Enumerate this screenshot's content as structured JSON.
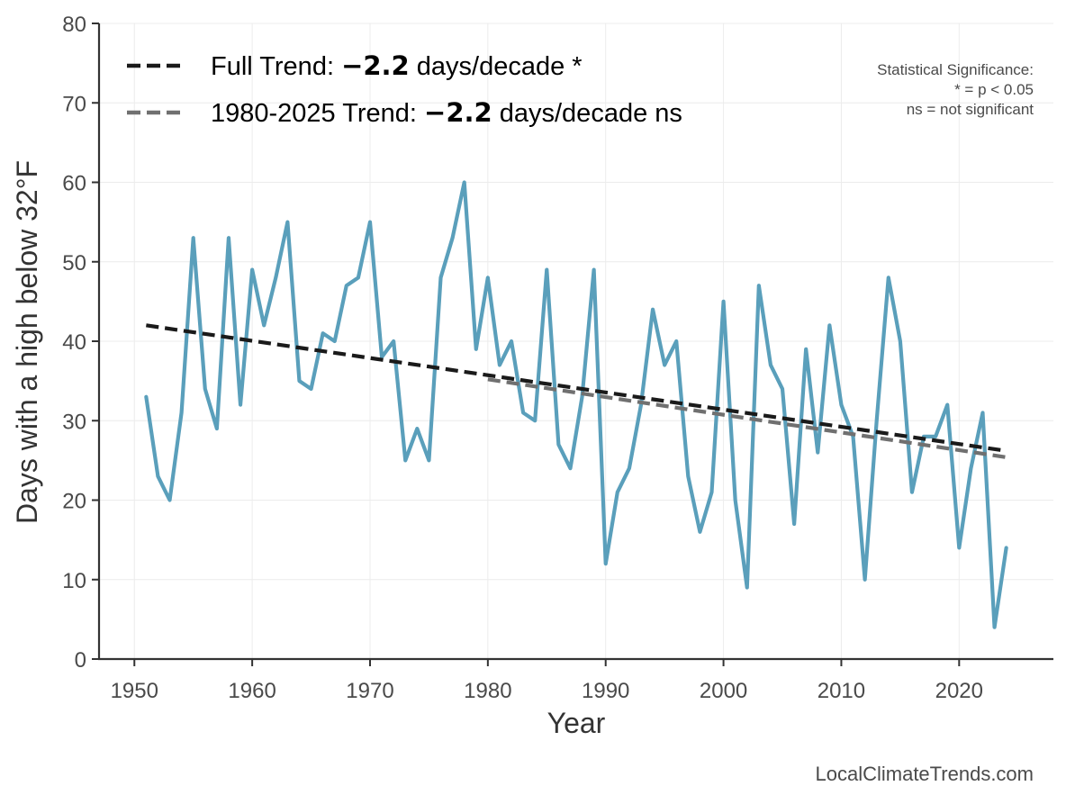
{
  "chart_data": {
    "type": "line",
    "title": "",
    "xlabel": "Year",
    "ylabel": "Days with a high below 32°F",
    "xlim": [
      1947,
      2028
    ],
    "ylim": [
      0,
      80
    ],
    "x_ticks": [
      1950,
      1960,
      1970,
      1980,
      1990,
      2000,
      2010,
      2020
    ],
    "y_ticks": [
      0,
      10,
      20,
      30,
      40,
      50,
      60,
      70,
      80
    ],
    "grid": true,
    "legend_position": "top-left",
    "colors": {
      "observed": "#5a9fbb",
      "full_trend": "#1a1a1a",
      "recent_trend": "#707070"
    },
    "series": [
      {
        "type": "line",
        "x": [
          1951,
          1952,
          1953,
          1954,
          1955,
          1956,
          1957,
          1958,
          1959,
          1960,
          1961,
          1962,
          1963,
          1964,
          1965,
          1966,
          1967,
          1968,
          1969,
          1970,
          1971,
          1972,
          1973,
          1974,
          1975,
          1976,
          1977,
          1978,
          1979,
          1980,
          1981,
          1982,
          1983,
          1984,
          1985,
          1986,
          1987,
          1988,
          1989,
          1990,
          1991,
          1992,
          1993,
          1994,
          1995,
          1996,
          1997,
          1998,
          1999,
          2000,
          2001,
          2002,
          2003,
          2004,
          2005,
          2006,
          2007,
          2008,
          2009,
          2010,
          2011,
          2012,
          2013,
          2014,
          2015,
          2016,
          2017,
          2018,
          2019,
          2020,
          2021,
          2022,
          2023,
          2024
        ],
        "values": [
          33,
          23,
          20,
          31,
          53,
          34,
          29,
          53,
          32,
          49,
          42,
          48,
          55,
          35,
          34,
          41,
          40,
          47,
          48,
          55,
          38,
          40,
          25,
          29,
          25,
          48,
          53,
          60,
          39,
          48,
          37,
          40,
          31,
          30,
          49,
          27,
          24,
          33,
          49,
          12,
          21,
          24,
          32,
          44,
          37,
          40,
          23,
          16,
          21,
          45,
          20,
          9,
          47,
          37,
          34,
          17,
          39,
          26,
          42,
          32,
          28,
          10,
          30,
          48,
          40,
          21,
          28,
          28,
          32,
          14,
          24,
          31,
          4,
          14
        ]
      },
      {
        "type": "trend",
        "x": [
          1951,
          2024
        ],
        "values": [
          42.0,
          26.2
        ]
      },
      {
        "type": "trend",
        "x": [
          1980,
          2024
        ],
        "values": [
          35.2,
          25.4
        ]
      }
    ],
    "legend": [
      {
        "prefix": "Full Trend: ",
        "value": "−2.2",
        "suffix": " days/decade *"
      },
      {
        "prefix": "1980-2025 Trend: ",
        "value": "−2.2",
        "suffix": " days/decade ns"
      }
    ],
    "significance_note": [
      "Statistical Significance:",
      "* = p < 0.05",
      "ns = not significant"
    ],
    "credit": "LocalClimateTrends.com"
  }
}
